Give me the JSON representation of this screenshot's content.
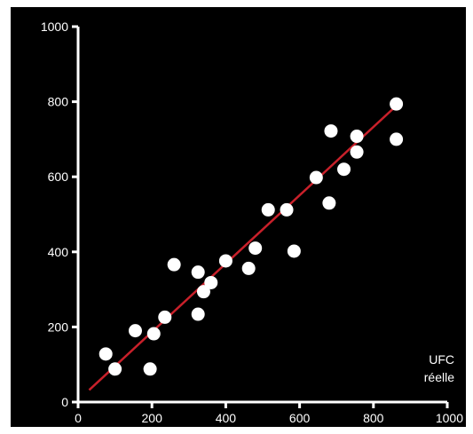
{
  "chart_data": {
    "type": "scatter",
    "xlabel": [
      "UFC",
      "réelle"
    ],
    "ylabel": "",
    "xlim": [
      0,
      1000
    ],
    "ylim": [
      0,
      1000
    ],
    "xticks": [
      0,
      200,
      400,
      600,
      800,
      1000
    ],
    "yticks": [
      0,
      200,
      400,
      600,
      800,
      1000
    ],
    "grid": false,
    "colors": {
      "background": "#000000",
      "axis": "#ffffff",
      "points": "#ffffff",
      "fit_line": "#c8202a"
    },
    "series": [
      {
        "points": [
          {
            "x": 75,
            "y": 128
          },
          {
            "x": 100,
            "y": 88
          },
          {
            "x": 155,
            "y": 190
          },
          {
            "x": 195,
            "y": 88
          },
          {
            "x": 205,
            "y": 182
          },
          {
            "x": 235,
            "y": 226
          },
          {
            "x": 260,
            "y": 366
          },
          {
            "x": 325,
            "y": 346
          },
          {
            "x": 325,
            "y": 234
          },
          {
            "x": 340,
            "y": 294
          },
          {
            "x": 360,
            "y": 318
          },
          {
            "x": 400,
            "y": 376
          },
          {
            "x": 462,
            "y": 356
          },
          {
            "x": 480,
            "y": 410
          },
          {
            "x": 515,
            "y": 512
          },
          {
            "x": 565,
            "y": 512
          },
          {
            "x": 585,
            "y": 402
          },
          {
            "x": 645,
            "y": 598
          },
          {
            "x": 680,
            "y": 530
          },
          {
            "x": 685,
            "y": 722
          },
          {
            "x": 720,
            "y": 620
          },
          {
            "x": 755,
            "y": 666
          },
          {
            "x": 755,
            "y": 708
          },
          {
            "x": 862,
            "y": 794
          },
          {
            "x": 862,
            "y": 700
          }
        ]
      }
    ],
    "fit_line": {
      "x": [
        30,
        865
      ],
      "y": [
        32,
        792
      ]
    }
  }
}
